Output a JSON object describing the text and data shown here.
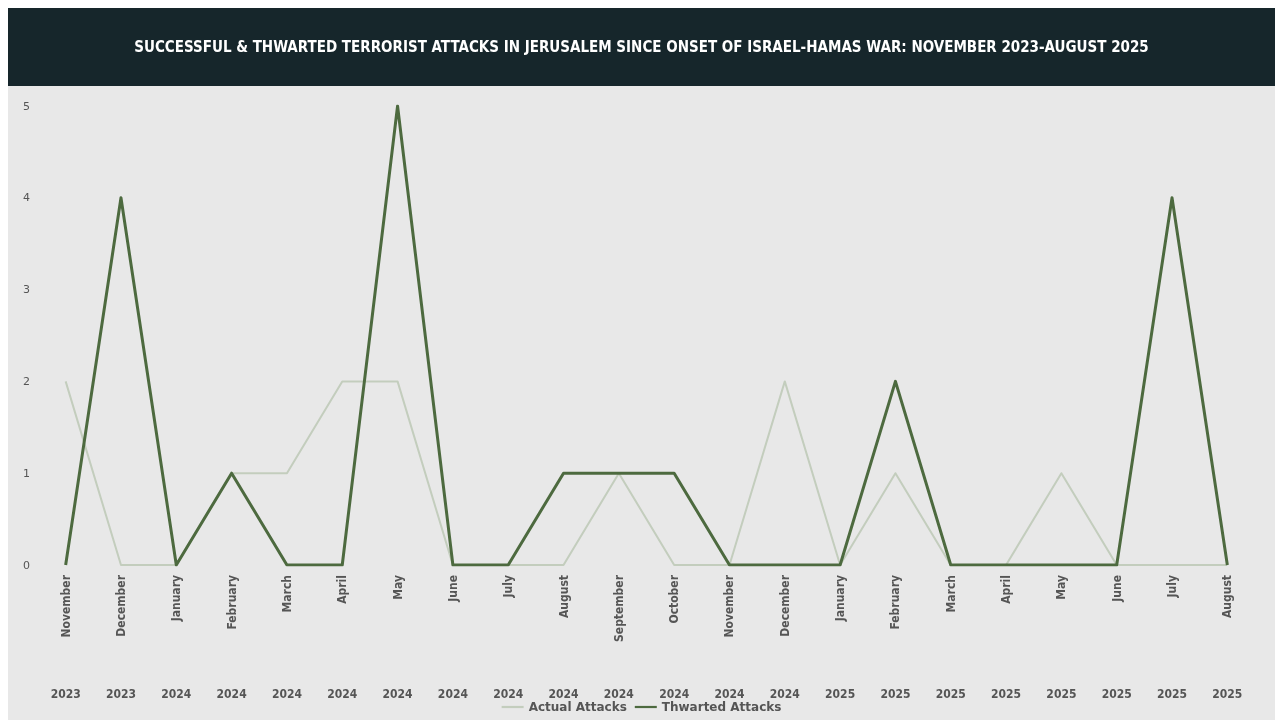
{
  "chart_data": {
    "type": "line",
    "title": "SUCCESSFUL & THWARTED TERRORIST ATTACKS IN JERUSALEM SINCE ONSET OF ISRAEL-HAMAS WAR: NOVEMBER 2023-AUGUST 2025",
    "categories": [
      "November 2023",
      "December 2023",
      "January 2024",
      "February 2024",
      "March 2024",
      "April 2024",
      "May 2024",
      "June 2024",
      "July 2024",
      "August 2024",
      "September 2024",
      "October 2024",
      "November 2024",
      "December 2024",
      "January 2025",
      "February 2025",
      "March 2025",
      "April 2025",
      "May 2025",
      "June 2025",
      "July 2025",
      "August 2025"
    ],
    "series": [
      {
        "name": "Actual Attacks",
        "color": "#c3cdbd",
        "values": [
          2,
          0,
          0,
          1,
          1,
          2,
          2,
          0,
          0,
          0,
          1,
          0,
          0,
          2,
          0,
          1,
          0,
          0,
          1,
          0,
          0,
          0
        ]
      },
      {
        "name": "Thwarted Attacks",
        "color": "#4d6a3f",
        "values": [
          0,
          4,
          0,
          1,
          0,
          0,
          5,
          0,
          0,
          1,
          1,
          1,
          0,
          0,
          0,
          2,
          0,
          0,
          0,
          0,
          4,
          0
        ]
      }
    ],
    "ylim": [
      0,
      5
    ],
    "yticks": [
      0,
      1,
      2,
      3,
      4,
      5
    ],
    "grid": false,
    "legend": "bottom",
    "marker": "none",
    "line_style": "solid"
  }
}
